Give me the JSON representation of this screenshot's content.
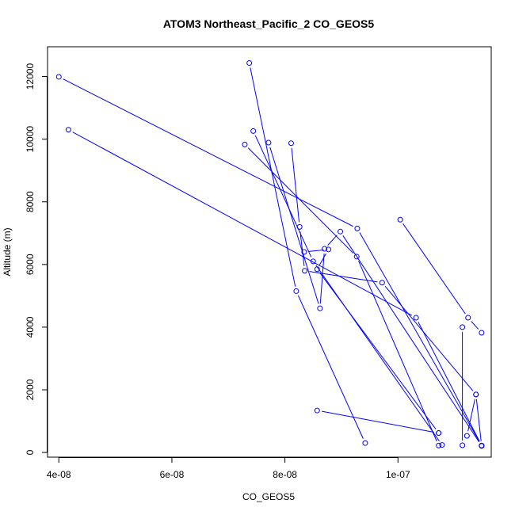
{
  "chart_data": {
    "type": "line",
    "title": "ATOM3 Northeast_Pacific_2 CO_GEOS5",
    "xlabel": "CO_GEOS5",
    "ylabel": "Altitude (m)",
    "xlim": [
      3.8e-08,
      1.165e-07
    ],
    "ylim": [
      -150,
      12950
    ],
    "x_ticks": [
      {
        "value": 4e-08,
        "label": "4e-08"
      },
      {
        "value": 6e-08,
        "label": "6e-08"
      },
      {
        "value": 8e-08,
        "label": "8e-08"
      },
      {
        "value": 1e-07,
        "label": "1e-07"
      }
    ],
    "y_ticks": [
      {
        "value": 0,
        "label": "0"
      },
      {
        "value": 2000,
        "label": "2000"
      },
      {
        "value": 4000,
        "label": "4000"
      },
      {
        "value": 6000,
        "label": "6000"
      },
      {
        "value": 8000,
        "label": "8000"
      },
      {
        "value": 10000,
        "label": "10000"
      },
      {
        "value": 12000,
        "label": "12000"
      }
    ],
    "line_color": "#0000ff",
    "marker": "open-circle",
    "grid": false,
    "series": [
      {
        "points": [
          [
            7.37e-08,
            12430
          ],
          [
            8.2e-08,
            5150
          ],
          [
            9.42e-08,
            300
          ]
        ]
      },
      {
        "points": [
          [
            4e-08,
            11990
          ],
          [
            9.28e-08,
            7150
          ],
          [
            1.148e-07,
            220
          ]
        ]
      },
      {
        "points": [
          [
            4.17e-08,
            10300
          ],
          [
            1.032e-07,
            4300
          ],
          [
            1.148e-07,
            220
          ]
        ]
      },
      {
        "points": [
          [
            7.44e-08,
            10260
          ],
          [
            8.5e-08,
            6100
          ],
          [
            1.078e-07,
            240
          ]
        ]
      },
      {
        "points": [
          [
            7.29e-08,
            9830
          ],
          [
            9.27e-08,
            6250
          ],
          [
            1.072e-07,
            220
          ]
        ]
      },
      {
        "points": [
          [
            7.71e-08,
            9890
          ],
          [
            8.62e-08,
            4600
          ],
          [
            8.7e-08,
            6500
          ],
          [
            8.98e-08,
            7050
          ],
          [
            1.148e-07,
            210
          ]
        ]
      },
      {
        "points": [
          [
            8.11e-08,
            9870
          ],
          [
            8.26e-08,
            7200
          ],
          [
            8.35e-08,
            5800
          ],
          [
            9.72e-08,
            5420
          ],
          [
            1.138e-07,
            1850
          ],
          [
            1.148e-07,
            210
          ]
        ]
      },
      {
        "points": [
          [
            8.34e-08,
            6400
          ],
          [
            8.77e-08,
            6480
          ],
          [
            8.57e-08,
            5850
          ],
          [
            1.072e-07,
            620
          ]
        ]
      },
      {
        "points": [
          [
            8.57e-08,
            1340
          ],
          [
            1.072e-07,
            620
          ]
        ]
      },
      {
        "points": [
          [
            1.004e-07,
            7430
          ],
          [
            1.124e-07,
            4300
          ],
          [
            1.148e-07,
            3820
          ]
        ]
      },
      {
        "points": [
          [
            1.114e-07,
            4000
          ],
          [
            1.114e-07,
            230
          ]
        ]
      },
      {
        "points": [
          [
            1.122e-07,
            530
          ],
          [
            1.138e-07,
            1850
          ]
        ]
      }
    ]
  }
}
